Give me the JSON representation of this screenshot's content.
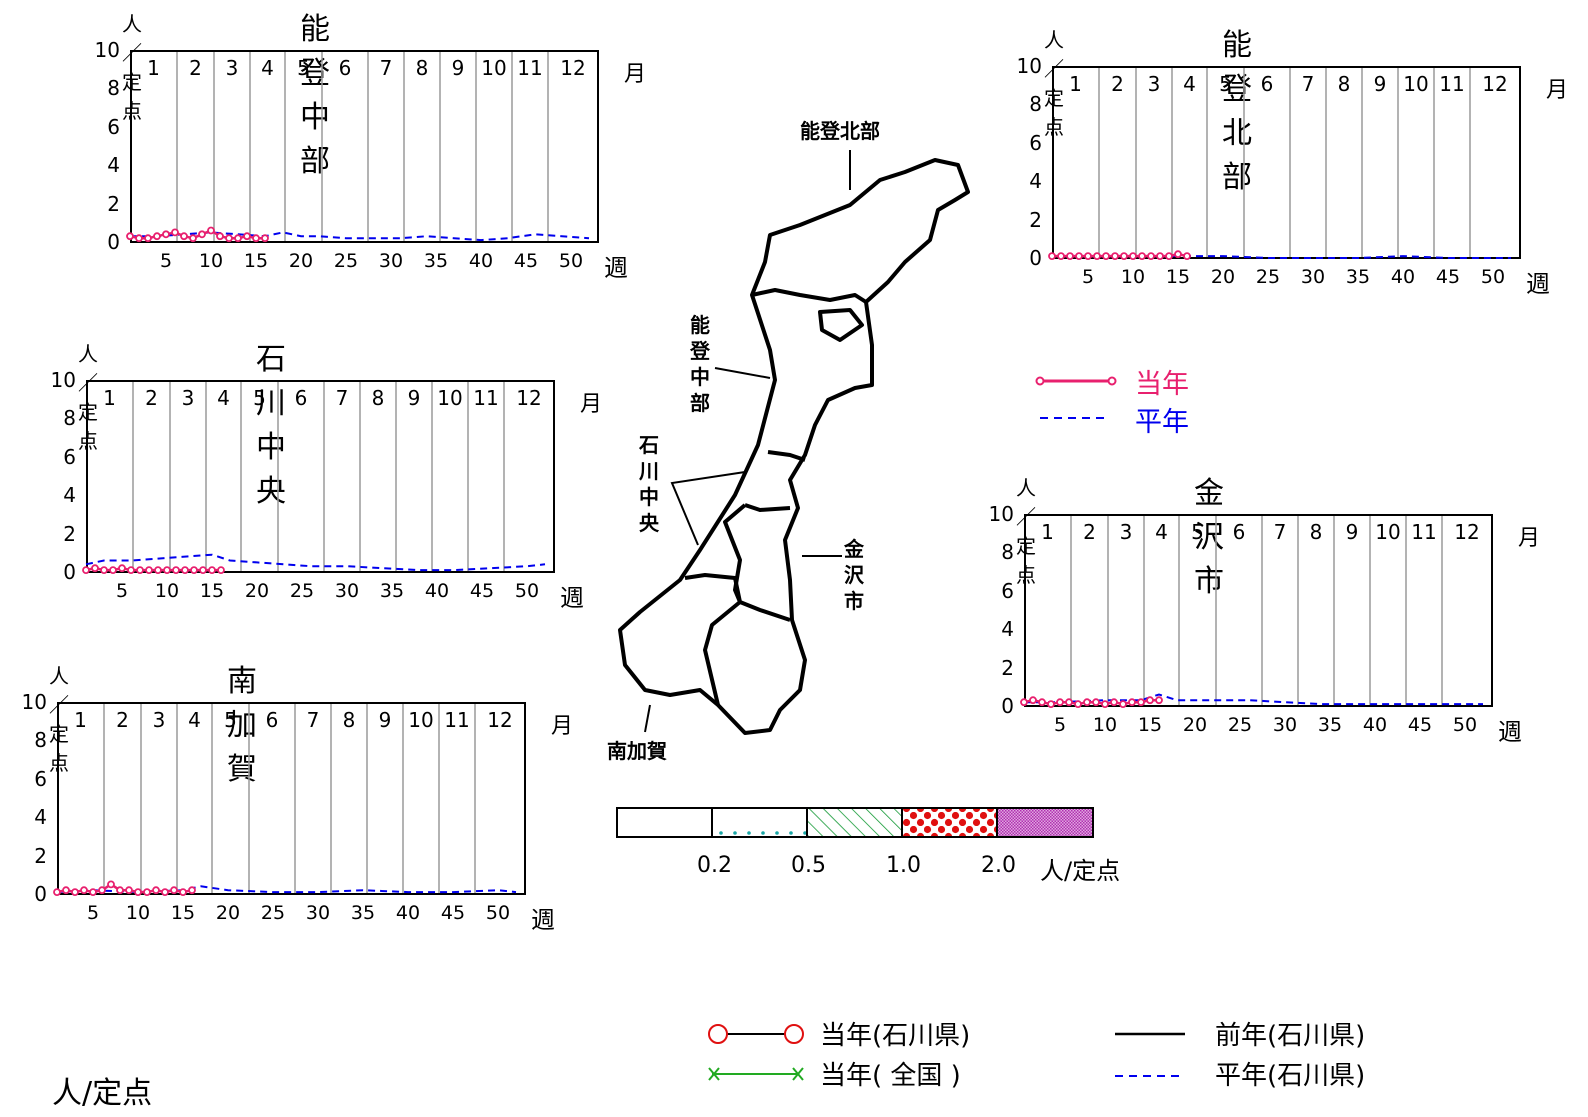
{
  "unit_label": "人／定点",
  "month_label": "月",
  "week_label": "週",
  "months": [
    "1",
    "2",
    "3",
    "4",
    "5",
    "6",
    "7",
    "8",
    "9",
    "10",
    "11",
    "12"
  ],
  "week_ticks": [
    "5",
    "10",
    "15",
    "20",
    "25",
    "30",
    "35",
    "40",
    "45",
    "50"
  ],
  "y_ticks": [
    "10",
    "8",
    "6",
    "4",
    "2",
    "0"
  ],
  "panel_legend": {
    "current": "当年",
    "average": "平年"
  },
  "map_labels": {
    "noto_north": "能登北部",
    "noto_central": [
      "能",
      "登",
      "中",
      "部"
    ],
    "ishikawa_central": [
      "石",
      "川",
      "中",
      "央"
    ],
    "kanazawa": [
      "金",
      "沢",
      "市"
    ],
    "minami_kaga": "南加賀"
  },
  "scale": {
    "ticks": [
      "0.2",
      "0.5",
      "1.0",
      "2.0"
    ],
    "unit": "人/定点",
    "colors": {
      "dots": "#1aa7a7",
      "hatch": "#119933",
      "red": "#e01010",
      "purple": "#b030b0"
    }
  },
  "footer_legend": {
    "current_ishikawa": "当年(石川県)",
    "current_national": "当年( 全国 )",
    "previous_ishikawa": "前年(石川県)",
    "average_ishikawa": "平年(石川県)",
    "unit": "人/定点"
  },
  "colors": {
    "current": "#e8206e",
    "average": "#0000ee",
    "previous": "#000000",
    "national": "#22aa22"
  },
  "chart_data": [
    {
      "type": "line",
      "title": "能登中部",
      "ylabel": "人／定点",
      "xlabel": "週",
      "ylim": [
        0,
        10
      ],
      "xlim": [
        1,
        53
      ],
      "series": [
        {
          "name": "当年",
          "x": [
            1,
            2,
            3,
            4,
            5,
            6,
            7,
            8,
            9,
            10,
            11,
            12,
            13,
            14,
            15,
            16
          ],
          "values": [
            0.3,
            0.2,
            0.2,
            0.3,
            0.4,
            0.5,
            0.3,
            0.2,
            0.4,
            0.6,
            0.3,
            0.2,
            0.2,
            0.3,
            0.2,
            0.2
          ]
        },
        {
          "name": "平年",
          "x": [
            1,
            4,
            7,
            10,
            13,
            16,
            18,
            20,
            22,
            25,
            28,
            31,
            34,
            37,
            40,
            43,
            46,
            49,
            52
          ],
          "values": [
            0.3,
            0.3,
            0.4,
            0.5,
            0.4,
            0.3,
            0.5,
            0.3,
            0.3,
            0.2,
            0.2,
            0.2,
            0.3,
            0.2,
            0.1,
            0.2,
            0.4,
            0.3,
            0.2
          ]
        }
      ]
    },
    {
      "type": "line",
      "title": "能登北部",
      "ylabel": "人／定点",
      "xlabel": "週",
      "ylim": [
        0,
        10
      ],
      "xlim": [
        1,
        53
      ],
      "series": [
        {
          "name": "当年",
          "x": [
            1,
            2,
            3,
            4,
            5,
            6,
            7,
            8,
            9,
            10,
            11,
            12,
            13,
            14,
            15,
            16
          ],
          "values": [
            0.1,
            0.1,
            0.1,
            0.1,
            0.1,
            0.1,
            0.1,
            0.1,
            0.1,
            0.1,
            0.1,
            0.1,
            0.1,
            0.1,
            0.2,
            0.1
          ]
        },
        {
          "name": "平年",
          "x": [
            1,
            5,
            10,
            15,
            17,
            20,
            25,
            30,
            35,
            40,
            45,
            50,
            52
          ],
          "values": [
            0.1,
            0.1,
            0.1,
            0.1,
            0.1,
            0.1,
            0.0,
            0.0,
            0.0,
            0.1,
            0.0,
            0.0,
            0.0
          ]
        }
      ]
    },
    {
      "type": "line",
      "title": "石川中央",
      "ylabel": "人／定点",
      "xlabel": "週",
      "ylim": [
        0,
        10
      ],
      "xlim": [
        1,
        53
      ],
      "series": [
        {
          "name": "当年",
          "x": [
            1,
            2,
            3,
            4,
            5,
            6,
            7,
            8,
            9,
            10,
            11,
            12,
            13,
            14,
            15,
            16
          ],
          "values": [
            0.1,
            0.2,
            0.1,
            0.1,
            0.2,
            0.1,
            0.1,
            0.1,
            0.1,
            0.1,
            0.1,
            0.1,
            0.1,
            0.1,
            0.1,
            0.1
          ]
        },
        {
          "name": "平年",
          "x": [
            1,
            3,
            6,
            9,
            12,
            15,
            17,
            20,
            23,
            26,
            30,
            34,
            38,
            42,
            46,
            50,
            52
          ],
          "values": [
            0.4,
            0.6,
            0.6,
            0.7,
            0.8,
            0.9,
            0.6,
            0.5,
            0.4,
            0.3,
            0.3,
            0.2,
            0.1,
            0.1,
            0.2,
            0.3,
            0.4
          ]
        }
      ]
    },
    {
      "type": "line",
      "title": "金沢市",
      "ylabel": "人／定点",
      "xlabel": "週",
      "ylim": [
        0,
        10
      ],
      "xlim": [
        1,
        53
      ],
      "series": [
        {
          "name": "当年",
          "x": [
            1,
            2,
            3,
            4,
            5,
            6,
            7,
            8,
            9,
            10,
            11,
            12,
            13,
            14,
            15,
            16
          ],
          "values": [
            0.2,
            0.3,
            0.2,
            0.1,
            0.2,
            0.2,
            0.1,
            0.2,
            0.2,
            0.1,
            0.2,
            0.1,
            0.2,
            0.2,
            0.3,
            0.3
          ]
        },
        {
          "name": "平年",
          "x": [
            1,
            5,
            10,
            14,
            16,
            18,
            22,
            26,
            30,
            34,
            38,
            42,
            46,
            50,
            52
          ],
          "values": [
            0.2,
            0.2,
            0.3,
            0.3,
            0.6,
            0.3,
            0.3,
            0.3,
            0.2,
            0.1,
            0.1,
            0.1,
            0.1,
            0.1,
            0.1
          ]
        }
      ]
    },
    {
      "type": "line",
      "title": "南加賀",
      "ylabel": "人／定点",
      "xlabel": "週",
      "ylim": [
        0,
        10
      ],
      "xlim": [
        1,
        53
      ],
      "series": [
        {
          "name": "当年",
          "x": [
            1,
            2,
            3,
            4,
            5,
            6,
            7,
            8,
            9,
            10,
            11,
            12,
            13,
            14,
            15,
            16
          ],
          "values": [
            0.1,
            0.2,
            0.1,
            0.2,
            0.1,
            0.2,
            0.5,
            0.2,
            0.2,
            0.1,
            0.1,
            0.2,
            0.1,
            0.2,
            0.1,
            0.2
          ]
        },
        {
          "name": "平年",
          "x": [
            1,
            5,
            10,
            15,
            17,
            20,
            25,
            30,
            35,
            40,
            45,
            50,
            52
          ],
          "values": [
            0.1,
            0.2,
            0.1,
            0.2,
            0.4,
            0.2,
            0.1,
            0.1,
            0.2,
            0.1,
            0.1,
            0.2,
            0.1
          ]
        }
      ]
    }
  ]
}
